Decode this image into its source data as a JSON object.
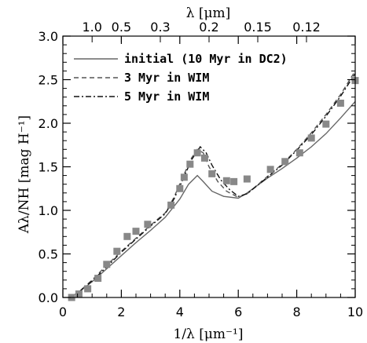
{
  "chart_data": {
    "type": "line",
    "xlabel": "1/λ [μm⁻¹]",
    "ylabel": "Aλ/NH [mag H⁻¹]",
    "top_xlabel": "λ [μm]",
    "xlim": [
      0,
      10
    ],
    "ylim": [
      0,
      3
    ],
    "x_ticks": [
      0,
      2,
      4,
      6,
      8,
      10
    ],
    "y_ticks": [
      0.0,
      0.5,
      1.0,
      1.5,
      2.0,
      2.5,
      3.0
    ],
    "x_tick_labels": [
      "0",
      "2",
      "4",
      "6",
      "8",
      "10"
    ],
    "y_tick_labels": [
      "0.0",
      "0.5",
      "1.0",
      "1.5",
      "2.0",
      "2.5",
      "3.0"
    ],
    "top_ticks": [
      {
        "label": "1.0",
        "lambda": 1.0
      },
      {
        "label": "0.5",
        "lambda": 0.5
      },
      {
        "label": "0.3",
        "lambda": 0.3
      },
      {
        "label": "0.2",
        "lambda": 0.2
      },
      {
        "label": "0.15",
        "lambda": 0.15
      },
      {
        "label": "0.12",
        "lambda": 0.12
      }
    ],
    "legend_position": "top-left",
    "series": [
      {
        "name": "initial (10 Myr in DC2)",
        "style": "solid",
        "color": "#666666",
        "x": [
          0.2,
          0.5,
          1.0,
          1.5,
          2.0,
          2.5,
          3.0,
          3.5,
          4.0,
          4.3,
          4.6,
          4.8,
          5.1,
          5.5,
          6.0,
          6.3,
          7.0,
          7.5,
          8.0,
          8.5,
          9.0,
          9.5,
          10.0
        ],
        "y": [
          0.0,
          0.05,
          0.18,
          0.33,
          0.48,
          0.63,
          0.77,
          0.92,
          1.13,
          1.3,
          1.4,
          1.33,
          1.22,
          1.16,
          1.14,
          1.2,
          1.37,
          1.48,
          1.6,
          1.73,
          1.88,
          2.06,
          2.25
        ]
      },
      {
        "name": "3 Myr in WIM",
        "style": "dashed",
        "color": "#555555",
        "x": [
          0.2,
          0.5,
          1.0,
          1.5,
          2.0,
          2.5,
          3.0,
          3.5,
          3.8,
          4.1,
          4.4,
          4.6,
          4.8,
          5.0,
          5.3,
          5.6,
          6.0,
          6.3,
          7.0,
          7.5,
          8.0,
          8.5,
          9.0,
          9.5,
          10.0
        ],
        "y": [
          0.0,
          0.05,
          0.2,
          0.37,
          0.53,
          0.68,
          0.83,
          0.97,
          1.15,
          1.38,
          1.6,
          1.7,
          1.66,
          1.5,
          1.33,
          1.22,
          1.15,
          1.19,
          1.39,
          1.53,
          1.7,
          1.89,
          2.1,
          2.33,
          2.6
        ]
      },
      {
        "name": "5 Myr in WIM",
        "style": "dashdot",
        "color": "#111111",
        "x": [
          0.2,
          0.5,
          1.0,
          1.5,
          2.0,
          2.5,
          3.0,
          3.5,
          3.8,
          4.1,
          4.4,
          4.7,
          4.9,
          5.1,
          5.4,
          5.7,
          6.0,
          6.3,
          7.0,
          7.5,
          8.0,
          8.5,
          9.0,
          9.5,
          10.0
        ],
        "y": [
          0.0,
          0.05,
          0.19,
          0.35,
          0.52,
          0.67,
          0.82,
          0.96,
          1.13,
          1.35,
          1.58,
          1.73,
          1.66,
          1.52,
          1.35,
          1.24,
          1.16,
          1.19,
          1.38,
          1.52,
          1.69,
          1.87,
          2.08,
          2.31,
          2.57
        ]
      }
    ],
    "observed_points": {
      "color": "#888888",
      "x": [
        0.3,
        0.55,
        0.85,
        1.2,
        1.5,
        1.85,
        2.2,
        2.5,
        2.9,
        3.7,
        4.0,
        4.15,
        4.35,
        4.6,
        4.85,
        5.1,
        5.6,
        5.85,
        6.3,
        7.1,
        7.6,
        8.1,
        8.5,
        9.0,
        9.5,
        10.0
      ],
      "y": [
        0.0,
        0.04,
        0.1,
        0.22,
        0.38,
        0.53,
        0.7,
        0.76,
        0.84,
        1.06,
        1.25,
        1.38,
        1.53,
        1.66,
        1.6,
        1.42,
        1.34,
        1.33,
        1.36,
        1.47,
        1.56,
        1.66,
        1.83,
        1.99,
        2.23,
        2.49
      ]
    }
  }
}
